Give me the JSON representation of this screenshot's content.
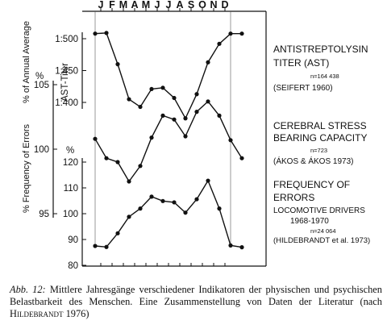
{
  "chart_data": {
    "type": "line",
    "months": [
      "J",
      "F",
      "M",
      "A",
      "M",
      "J",
      "J",
      "A",
      "S",
      "O",
      "N",
      "D"
    ],
    "x": [
      1,
      2,
      3,
      4,
      5,
      6,
      7,
      8,
      9,
      10,
      11,
      12,
      13,
      14
    ],
    "axes": {
      "ast": {
        "label": "AST-Titer",
        "ticks": [
          "1:500",
          "1:450",
          "1:400"
        ],
        "tick_values": [
          500,
          450,
          400
        ]
      },
      "cerebral": {
        "label": "% of Annual Average",
        "unit": "%",
        "ticks": [
          "105",
          "100",
          "95"
        ],
        "tick_values": [
          105,
          100,
          95
        ]
      },
      "errors": {
        "label": "% Frequency of Errors",
        "unit": "%",
        "ticks": [
          "120",
          "110",
          "100",
          "90",
          "80"
        ],
        "tick_values": [
          120,
          110,
          100,
          90,
          80
        ]
      }
    },
    "series": [
      {
        "name": "ANTISTREPTOLYSIN TITER (AST)",
        "label_lines": [
          "ANTISTREPTOLYSIN",
          "TITER (AST)"
        ],
        "n": "n=164 438",
        "source": "(SEIFERT 1960)",
        "axis": "ast",
        "values": [
          508,
          509,
          460,
          405,
          393,
          421,
          423,
          407,
          375,
          413,
          463,
          492,
          508,
          508
        ]
      },
      {
        "name": "CEREBRAL STRESS BEARING CAPACITY",
        "label_lines": [
          "CEREBRAL STRESS",
          "BEARING CAPACITY"
        ],
        "n": "n=723",
        "source": "(ÁKOS & ÁKOS 1973)",
        "axis": "cerebral",
        "values": [
          100.8,
          99.3,
          99.0,
          97.5,
          98.7,
          100.9,
          102.6,
          102.3,
          101.0,
          102.9,
          103.7,
          102.6,
          100.7,
          99.3
        ]
      },
      {
        "name": "FREQUENCY OF ERRORS",
        "label_lines": [
          "FREQUENCY OF",
          "ERRORS"
        ],
        "sublabel_lines": [
          "LOCOMOTIVE DRIVERS",
          "1968-1970"
        ],
        "n": "n=24 064",
        "source": "(HILDEBRANDT et al. 1973)",
        "axis": "errors",
        "values": [
          87.5,
          87.1,
          92.4,
          98.8,
          102.0,
          106.6,
          104.9,
          104.4,
          100.4,
          105.6,
          112.8,
          102.0,
          87.7,
          87.0
        ]
      }
    ]
  },
  "caption": {
    "lead": "Abb. 12:",
    "text": "Mittlere Jahresgänge verschiedener Indikatoren der physischen und psychischen Belastbarkeit des Menschen. Eine Zusammenstellung von Daten der Literatur (nach",
    "author": "Hildebrandt",
    "year": "1976)"
  }
}
